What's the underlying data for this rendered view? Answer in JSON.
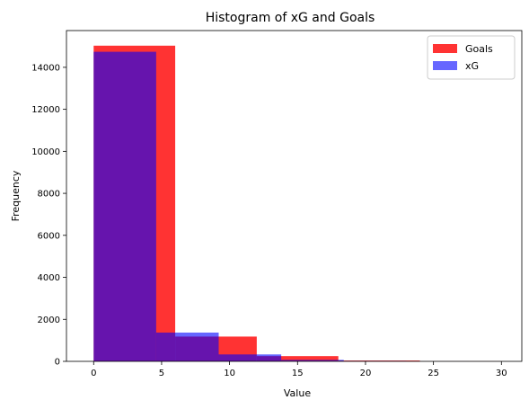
{
  "chart_data": {
    "type": "bar",
    "title": "Histogram of xG and Goals",
    "xlabel": "Value",
    "ylabel": "Frequency",
    "xlim": [
      -2,
      31.5
    ],
    "ylim": [
      0,
      15750
    ],
    "xticks": [
      0,
      5,
      10,
      15,
      20,
      25,
      30
    ],
    "yticks": [
      0,
      2000,
      4000,
      6000,
      8000,
      10000,
      12000,
      14000
    ],
    "grid": false,
    "legend_position": "top-right",
    "series": [
      {
        "name": "Goals",
        "color": "#ff0000",
        "opacity": 0.8,
        "bins": [
          {
            "x0": 0,
            "x1": 6,
            "value": 15030
          },
          {
            "x0": 6,
            "x1": 12,
            "value": 1180
          },
          {
            "x0": 12,
            "x1": 18,
            "value": 250
          },
          {
            "x0": 18,
            "x1": 24,
            "value": 40
          },
          {
            "x0": 24,
            "x1": 30,
            "value": 5
          }
        ]
      },
      {
        "name": "xG",
        "color": "#0000ff",
        "opacity": 0.6,
        "bins": [
          {
            "x0": 0,
            "x1": 4.6,
            "value": 14740
          },
          {
            "x0": 4.6,
            "x1": 9.2,
            "value": 1370
          },
          {
            "x0": 9.2,
            "x1": 13.8,
            "value": 330
          },
          {
            "x0": 13.8,
            "x1": 18.4,
            "value": 70
          },
          {
            "x0": 18.4,
            "x1": 23.0,
            "value": 20
          },
          {
            "x0": 23.0,
            "x1": 27.6,
            "value": 3
          }
        ]
      }
    ]
  }
}
